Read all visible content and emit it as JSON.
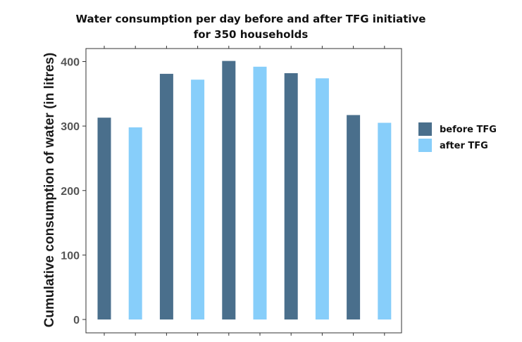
{
  "chart_data": {
    "type": "bar",
    "title_lines": [
      "Water consumption per day before and after TFG initiative",
      "for 350 households"
    ],
    "xlabel": "",
    "ylabel": "Cumulative consumption of water (in litres)",
    "ylim": [
      0,
      420
    ],
    "yticks": [
      0,
      100,
      200,
      300,
      400
    ],
    "grid": false,
    "legend_position": "right",
    "colors": {
      "before": "#4a6f8c",
      "after": "#87cefa"
    },
    "series": [
      {
        "name": "before TFG",
        "values": [
          313,
          381,
          401,
          382,
          317
        ]
      },
      {
        "name": "after TFG",
        "values": [
          298,
          372,
          392,
          374,
          305
        ]
      }
    ]
  }
}
